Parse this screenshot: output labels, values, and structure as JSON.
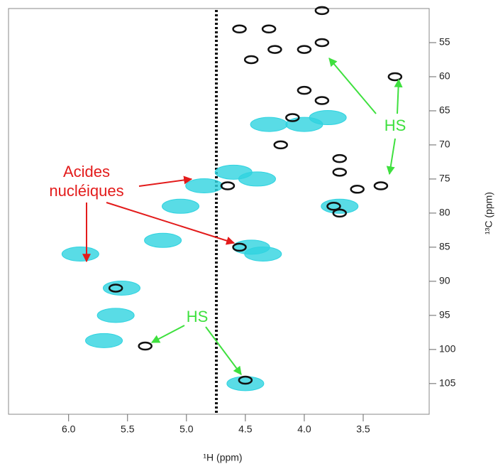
{
  "chart_data": {
    "type": "contour",
    "x_label": "¹H (ppm)",
    "y_label": "¹³C (ppm)",
    "xlim": [
      6.51,
      2.94
    ],
    "ylim": [
      50,
      109.5
    ],
    "xticks": [
      {
        "value": 6,
        "label": "6.0"
      },
      5.5,
      {
        "value": 5,
        "label": "5.0"
      },
      4.5,
      {
        "value": 4,
        "label": "4.0"
      },
      3.5
    ],
    "yticks": [
      55,
      60,
      65,
      70,
      75,
      80,
      85,
      90,
      95,
      100,
      105
    ],
    "series": [
      {
        "color": "#2fd3e0",
        "x": [
          5.9,
          5.05,
          4.85,
          4.6,
          4.4,
          4.45,
          4.35,
          4.0,
          4.3,
          3.8,
          5.55,
          5.6,
          5.2,
          4.5,
          3.7,
          5.7
        ],
        "y": [
          86,
          79,
          76,
          74,
          75,
          85,
          86,
          67,
          67,
          66,
          91,
          95,
          84,
          105,
          79,
          98.7
        ]
      },
      {
        "color": "#111111",
        "x": [
          3.85,
          4.55,
          4.3,
          4.25,
          4.45,
          4.0,
          3.85,
          4.0,
          3.85,
          4.1,
          4.2,
          3.7,
          3.7,
          3.35,
          3.55,
          3.7,
          3.75,
          4.65,
          4.55,
          5.6,
          5.35,
          4.5,
          3.23
        ],
        "y": [
          50.3,
          53,
          53,
          56,
          57.5,
          56,
          55,
          62,
          63.5,
          66,
          70,
          72,
          74,
          76,
          76.5,
          80,
          79,
          76,
          85,
          91,
          99.5,
          104.5,
          60
        ]
      }
    ],
    "annotations": {
      "acides_line1": "Acides",
      "acides_line2": "nucléiques",
      "hs_top": "HS",
      "hs_bottom": "HS"
    }
  }
}
